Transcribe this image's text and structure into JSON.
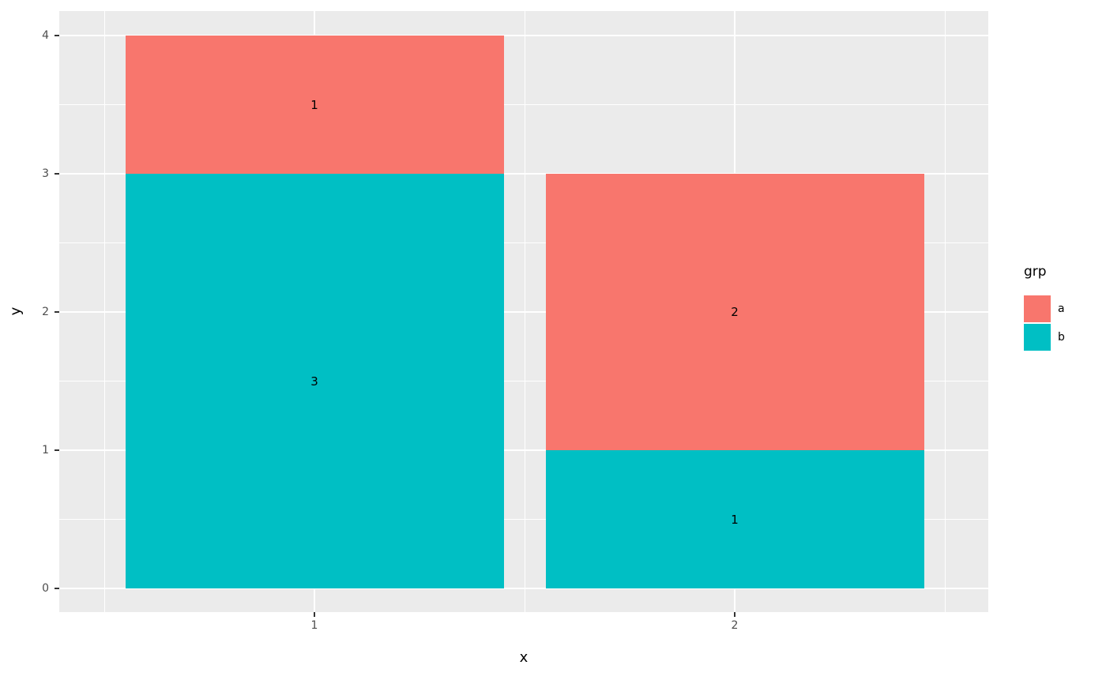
{
  "chart_data": {
    "type": "bar",
    "stacked": true,
    "orientation": "vertical",
    "title": "",
    "xlabel": "x",
    "ylabel": "y",
    "categories": [
      "1",
      "2"
    ],
    "series": [
      {
        "name": "a",
        "color": "#F8766D",
        "values": [
          1,
          2
        ]
      },
      {
        "name": "b",
        "color": "#00BFC4",
        "values": [
          3,
          1
        ]
      }
    ],
    "segment_labels": [
      {
        "category": "1",
        "a": "1",
        "b": "3"
      },
      {
        "category": "2",
        "a": "2",
        "b": "1"
      }
    ],
    "ylim": [
      0,
      4
    ],
    "yticks": [
      "0",
      "1",
      "2",
      "3",
      "4"
    ],
    "xticks": [
      "1",
      "2"
    ],
    "grid": "on",
    "legend": {
      "title": "grp",
      "position": "right",
      "entries": [
        {
          "label": "a",
          "color": "#F8766D"
        },
        {
          "label": "b",
          "color": "#00BFC4"
        }
      ]
    },
    "style": {
      "panel_bg": "#EBEBEB",
      "grid_color": "#FFFFFF",
      "tick_color": "#333333",
      "tick_label_color": "#4D4D4D",
      "axis_title_color": "#000000",
      "outer_bg": "#FFFFFF"
    }
  }
}
